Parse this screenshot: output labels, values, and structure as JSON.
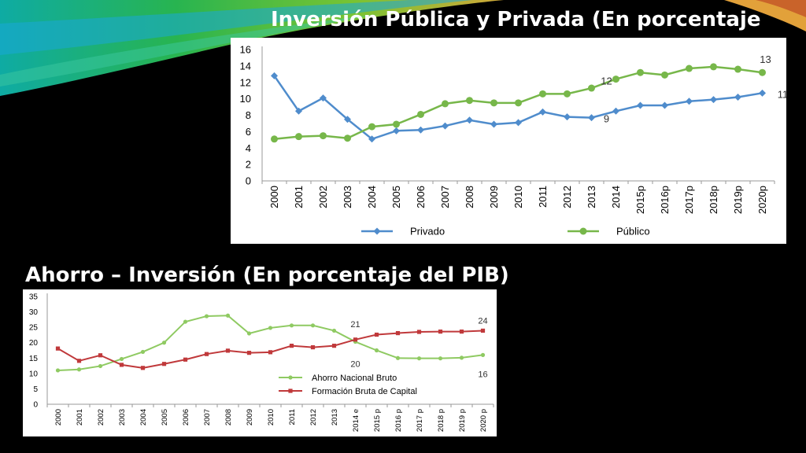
{
  "slide": {
    "title_top": "Inversión Pública y Privada (En porcentaje",
    "title_bottom": "Ahorro – Inversión (En porcentaje del PIB)"
  },
  "colors": {
    "background": "#000000",
    "green_series": "#77b74a",
    "blue_series": "#4f8ccc",
    "red_series": "#c0393b",
    "light_green_series": "#8fca62"
  },
  "chart_data": [
    {
      "type": "line",
      "x": [
        "2000",
        "2001",
        "2002",
        "2003",
        "2004",
        "2005",
        "2006",
        "2007",
        "2008",
        "2009",
        "2010",
        "2011",
        "2012",
        "2013",
        "2014",
        "2015p",
        "2016p",
        "2017p",
        "2018p",
        "2019p",
        "2020p"
      ],
      "series": [
        {
          "name": "Privado",
          "color": "#4f8ccc",
          "marker": "diamond",
          "values": [
            12.8,
            8.5,
            10.1,
            7.5,
            5.1,
            6.1,
            6.2,
            6.7,
            7.4,
            6.9,
            7.1,
            8.4,
            7.8,
            7.7,
            8.5,
            9.2,
            9.2,
            9.7,
            9.9,
            10.2,
            10.7
          ]
        },
        {
          "name": "Público",
          "color": "#77b74a",
          "marker": "circle",
          "values": [
            5.1,
            5.4,
            5.5,
            5.2,
            6.6,
            6.9,
            8.1,
            9.4,
            9.8,
            9.5,
            9.5,
            10.6,
            10.6,
            11.3,
            12.4,
            13.2,
            12.9,
            13.7,
            13.9,
            13.6,
            13.2
          ]
        }
      ],
      "ylim": [
        0,
        16
      ],
      "yticks": [
        0,
        2,
        4,
        6,
        8,
        10,
        12,
        14,
        16
      ],
      "legend_position": "bottom",
      "annotations": [
        {
          "text": "12",
          "series": "Público",
          "index": 14
        },
        {
          "text": "9",
          "series": "Privado",
          "index": 14
        },
        {
          "text": "13",
          "series": "Público",
          "index": 20
        },
        {
          "text": "11",
          "series": "Privado",
          "index": 20
        }
      ]
    },
    {
      "type": "line",
      "x": [
        "2000",
        "2001",
        "2002",
        "2003",
        "2004",
        "2005",
        "2006",
        "2007",
        "2008",
        "2009",
        "2010",
        "2011",
        "2012",
        "2013",
        "2014 e",
        "2015 p",
        "2016 p",
        "2017 p",
        "2018 p",
        "2019 p",
        "2020 p"
      ],
      "series": [
        {
          "name": "Ahorro Nacional Bruto",
          "color": "#8fca62",
          "marker": "circle",
          "values": [
            11,
            11.3,
            12.4,
            14.7,
            17,
            20,
            26.8,
            28.6,
            28.8,
            23,
            24.8,
            25.6,
            25.6,
            23.9,
            20.3,
            17.5,
            15,
            14.9,
            14.9,
            15.1,
            16
          ]
        },
        {
          "name": "Formación Bruta de Capital",
          "color": "#c0393b",
          "marker": "square",
          "values": [
            18.1,
            14.1,
            15.9,
            12.8,
            11.8,
            13.1,
            14.5,
            16.3,
            17.4,
            16.7,
            16.9,
            19,
            18.5,
            19,
            21,
            22.6,
            23.1,
            23.5,
            23.6,
            23.6,
            23.9
          ]
        }
      ],
      "ylim": [
        0,
        35
      ],
      "yticks": [
        0,
        5,
        10,
        15,
        20,
        25,
        30,
        35
      ],
      "legend_position": "lower-center",
      "annotations": [
        {
          "text": "21",
          "series": "Formación Bruta de Capital",
          "index": 14
        },
        {
          "text": "20",
          "series": "Ahorro Nacional Bruto",
          "index": 14
        },
        {
          "text": "24",
          "series": "Formación Bruta de Capital",
          "index": 20
        },
        {
          "text": "16",
          "series": "Ahorro Nacional Bruto",
          "index": 20
        }
      ]
    }
  ]
}
